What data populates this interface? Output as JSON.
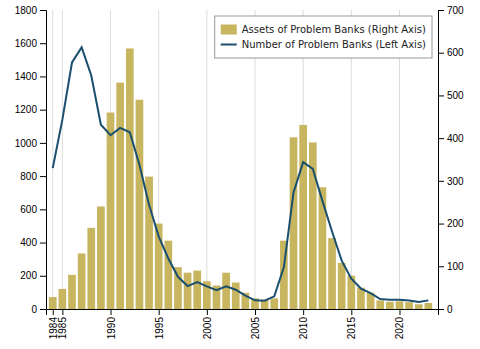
{
  "chart_data": {
    "type": "bar",
    "x": [
      1984,
      1985,
      1986,
      1987,
      1988,
      1989,
      1990,
      1991,
      1992,
      1993,
      1994,
      1995,
      1996,
      1997,
      1998,
      1999,
      2000,
      2001,
      2002,
      2003,
      2004,
      2005,
      2006,
      2007,
      2008,
      2009,
      2010,
      2011,
      2012,
      2013,
      2014,
      2015,
      2016,
      2017,
      2018,
      2019,
      2020,
      2021,
      2022,
      2023
    ],
    "xlim": [
      1983.3,
      2024
    ],
    "xticks": [
      1984,
      1985,
      1990,
      1995,
      2000,
      2005,
      2010,
      2015,
      2020
    ],
    "ylim": [
      0,
      1800
    ],
    "yticks": [
      0,
      200,
      400,
      600,
      800,
      1000,
      1200,
      1400,
      1600,
      1800
    ],
    "y2lim": [
      0,
      700
    ],
    "y2ticks": [
      0,
      100,
      200,
      300,
      400,
      500,
      600,
      700
    ],
    "grid": true,
    "legend": "upper right",
    "series": [
      {
        "name": "Assets of Problem Banks (Right Axis)",
        "type": "bar",
        "axis": "y2",
        "color": "#C8B560",
        "values": [
          28,
          47,
          80,
          130,
          190,
          240,
          460,
          530,
          610,
          490,
          310,
          200,
          160,
          98,
          85,
          90,
          65,
          55,
          85,
          62,
          38,
          25,
          22,
          25,
          160,
          402,
          431,
          390,
          285,
          166,
          108,
          78,
          50,
          38,
          20,
          17,
          18,
          16,
          11,
          14
        ]
      },
      {
        "name": "Number of Problem Banks (Left Axis)",
        "type": "line",
        "color": "#1a4f6e",
        "values": [
          848,
          1140,
          1484,
          1575,
          1406,
          1109,
          1046,
          1090,
          1064,
          868,
          627,
          437,
          304,
          194,
          138,
          162,
          136,
          114,
          136,
          116,
          80,
          52,
          50,
          76,
          252,
          702,
          884,
          844,
          651,
          467,
          291,
          183,
          123,
          95,
          60,
          55,
          56,
          51,
          42,
          52
        ]
      }
    ]
  }
}
